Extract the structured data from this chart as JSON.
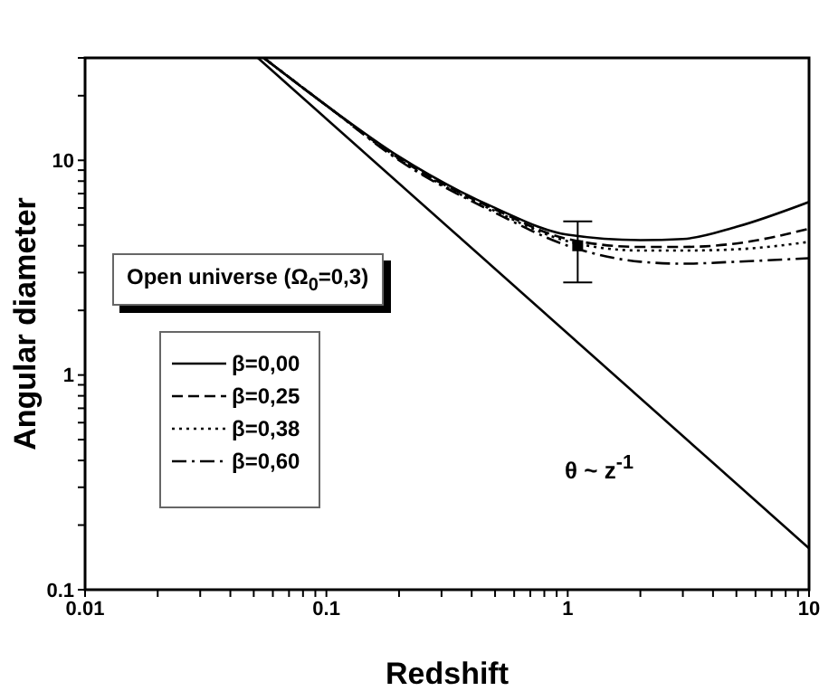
{
  "chart_data": {
    "type": "line",
    "xlabel": "Redshift",
    "ylabel": "Angular diameter",
    "log": "xy",
    "grid": false,
    "legend": "left",
    "xlim": [
      0.01,
      10
    ],
    "ylim": [
      0.1,
      30
    ],
    "xticks": [
      0.01,
      {
        "value": 0.02,
        "label": null
      },
      {
        "value": 0.03,
        "label": null
      },
      {
        "value": 0.04,
        "label": null
      },
      {
        "value": 0.05,
        "label": null
      },
      {
        "value": 0.06,
        "label": null
      },
      {
        "value": 0.07,
        "label": null
      },
      {
        "value": 0.08,
        "label": null
      },
      {
        "value": 0.09,
        "label": null
      },
      0.1,
      {
        "value": 0.2,
        "label": null
      },
      {
        "value": 0.3,
        "label": null
      },
      {
        "value": 0.4,
        "label": null
      },
      {
        "value": 0.5,
        "label": null
      },
      {
        "value": 0.6,
        "label": null
      },
      {
        "value": 0.7,
        "label": null
      },
      {
        "value": 0.8,
        "label": null
      },
      {
        "value": 0.9,
        "label": null
      },
      1,
      {
        "value": 2,
        "label": null
      },
      {
        "value": 3,
        "label": null
      },
      {
        "value": 4,
        "label": null
      },
      {
        "value": 5,
        "label": null
      },
      {
        "value": 6,
        "label": null
      },
      {
        "value": 7,
        "label": null
      },
      {
        "value": 8,
        "label": null
      },
      {
        "value": 9,
        "label": null
      },
      10
    ],
    "yticks": [
      0.1,
      {
        "value": 0.2,
        "label": null
      },
      {
        "value": 0.3,
        "label": null
      },
      {
        "value": 0.4,
        "label": null
      },
      {
        "value": 0.5,
        "label": null
      },
      {
        "value": 0.6,
        "label": null
      },
      {
        "value": 0.7,
        "label": null
      },
      {
        "value": 0.8,
        "label": null
      },
      {
        "value": 0.9,
        "label": null
      },
      1,
      {
        "value": 2,
        "label": null
      },
      {
        "value": 3,
        "label": null
      },
      {
        "value": 4,
        "label": null
      },
      {
        "value": 5,
        "label": null
      },
      {
        "value": 6,
        "label": null
      },
      {
        "value": 7,
        "label": null
      },
      {
        "value": 8,
        "label": null
      },
      {
        "value": 9,
        "label": null
      },
      10,
      {
        "value": 20,
        "label": null
      },
      {
        "value": 30,
        "label": null
      }
    ],
    "series": [
      {
        "name": "β=0,00",
        "color": "#000000",
        "line_style": "solid",
        "x": [
          0.055,
          0.1,
          0.2,
          0.5,
          1,
          2,
          3,
          5,
          10
        ],
        "values": [
          30,
          18,
          10.4,
          6.0,
          4.5,
          4.25,
          4.3,
          4.9,
          6.4
        ]
      },
      {
        "name": "β=0,25",
        "color": "#000000",
        "line_style": "dashed",
        "x": [
          0.055,
          0.1,
          0.2,
          0.5,
          1,
          2,
          3,
          5,
          10
        ],
        "values": [
          30,
          18,
          10.2,
          5.9,
          4.3,
          3.95,
          3.95,
          4.1,
          4.8
        ]
      },
      {
        "name": "β=0,38",
        "color": "#000000",
        "line_style": "dotted",
        "x": [
          0.055,
          0.1,
          0.2,
          0.5,
          1,
          2,
          3,
          5,
          10
        ],
        "values": [
          30,
          18,
          10.1,
          5.8,
          4.2,
          3.8,
          3.8,
          3.85,
          4.17
        ]
      },
      {
        "name": "β=0,60",
        "color": "#000000",
        "line_style": "dashdot",
        "x": [
          0.055,
          0.1,
          0.2,
          0.5,
          1,
          2,
          3,
          5,
          10
        ],
        "values": [
          30,
          18,
          10,
          5.7,
          4.0,
          3.37,
          3.3,
          3.37,
          3.5
        ]
      },
      {
        "type": "line",
        "color": "#000000",
        "line_style": "solid",
        "x": [
          0.052,
          10
        ],
        "values": [
          30,
          0.156
        ]
      },
      {
        "type": "scatter",
        "color": "#000000",
        "marker": "square",
        "x": [
          1.1
        ],
        "values": [
          4
        ],
        "errors": [
          [
            2.7,
            5.2
          ]
        ]
      }
    ],
    "annotations": [
      "Open universe (Ω$_{0}$=0,3)",
      "θ ~ z$^{-1}$"
    ]
  }
}
